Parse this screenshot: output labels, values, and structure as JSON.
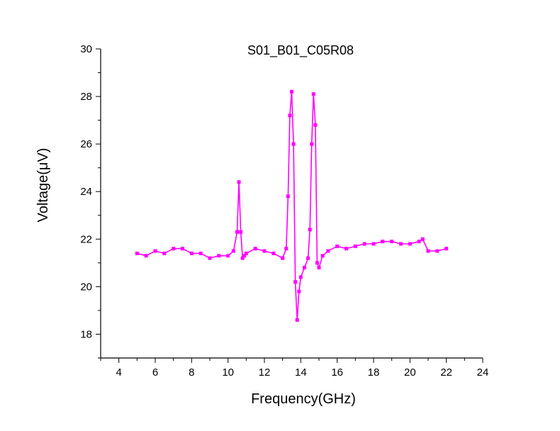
{
  "chart_data": {
    "type": "line",
    "title": "S01_B01_C05R08",
    "xlabel": "Frequency(GHz)",
    "ylabel": "Voltage(μV)",
    "xlim": [
      3,
      24
    ],
    "ylim": [
      17,
      30
    ],
    "xticks": [
      4,
      6,
      8,
      10,
      12,
      14,
      16,
      18,
      20,
      22,
      24
    ],
    "yticks": [
      18,
      20,
      22,
      24,
      26,
      28,
      30
    ],
    "color": "#ff00ff",
    "series": [
      {
        "name": "S01_B01_C05R08",
        "x": [
          5.0,
          5.5,
          6.0,
          6.5,
          7.0,
          7.5,
          8.0,
          8.5,
          9.0,
          9.5,
          10.0,
          10.3,
          10.5,
          10.6,
          10.7,
          10.8,
          10.9,
          11.0,
          11.5,
          12.0,
          12.5,
          13.0,
          13.2,
          13.3,
          13.4,
          13.5,
          13.6,
          13.7,
          13.8,
          13.9,
          14.0,
          14.2,
          14.4,
          14.5,
          14.6,
          14.7,
          14.8,
          14.9,
          15.0,
          15.2,
          15.5,
          16.0,
          16.5,
          17.0,
          17.5,
          18.0,
          18.5,
          19.0,
          19.5,
          20.0,
          20.5,
          20.7,
          21.0,
          21.5,
          22.0
        ],
        "y": [
          21.4,
          21.3,
          21.5,
          21.4,
          21.6,
          21.6,
          21.4,
          21.4,
          21.2,
          21.3,
          21.3,
          21.5,
          22.3,
          24.4,
          22.3,
          21.2,
          21.3,
          21.4,
          21.6,
          21.5,
          21.4,
          21.2,
          21.6,
          23.8,
          27.2,
          28.2,
          26.0,
          20.2,
          18.6,
          19.8,
          20.4,
          20.8,
          21.2,
          22.4,
          26.0,
          28.1,
          26.8,
          21.0,
          20.8,
          21.3,
          21.5,
          21.7,
          21.6,
          21.7,
          21.8,
          21.8,
          21.9,
          21.9,
          21.8,
          21.8,
          21.9,
          22.0,
          21.5,
          21.5,
          21.6
        ]
      }
    ]
  }
}
